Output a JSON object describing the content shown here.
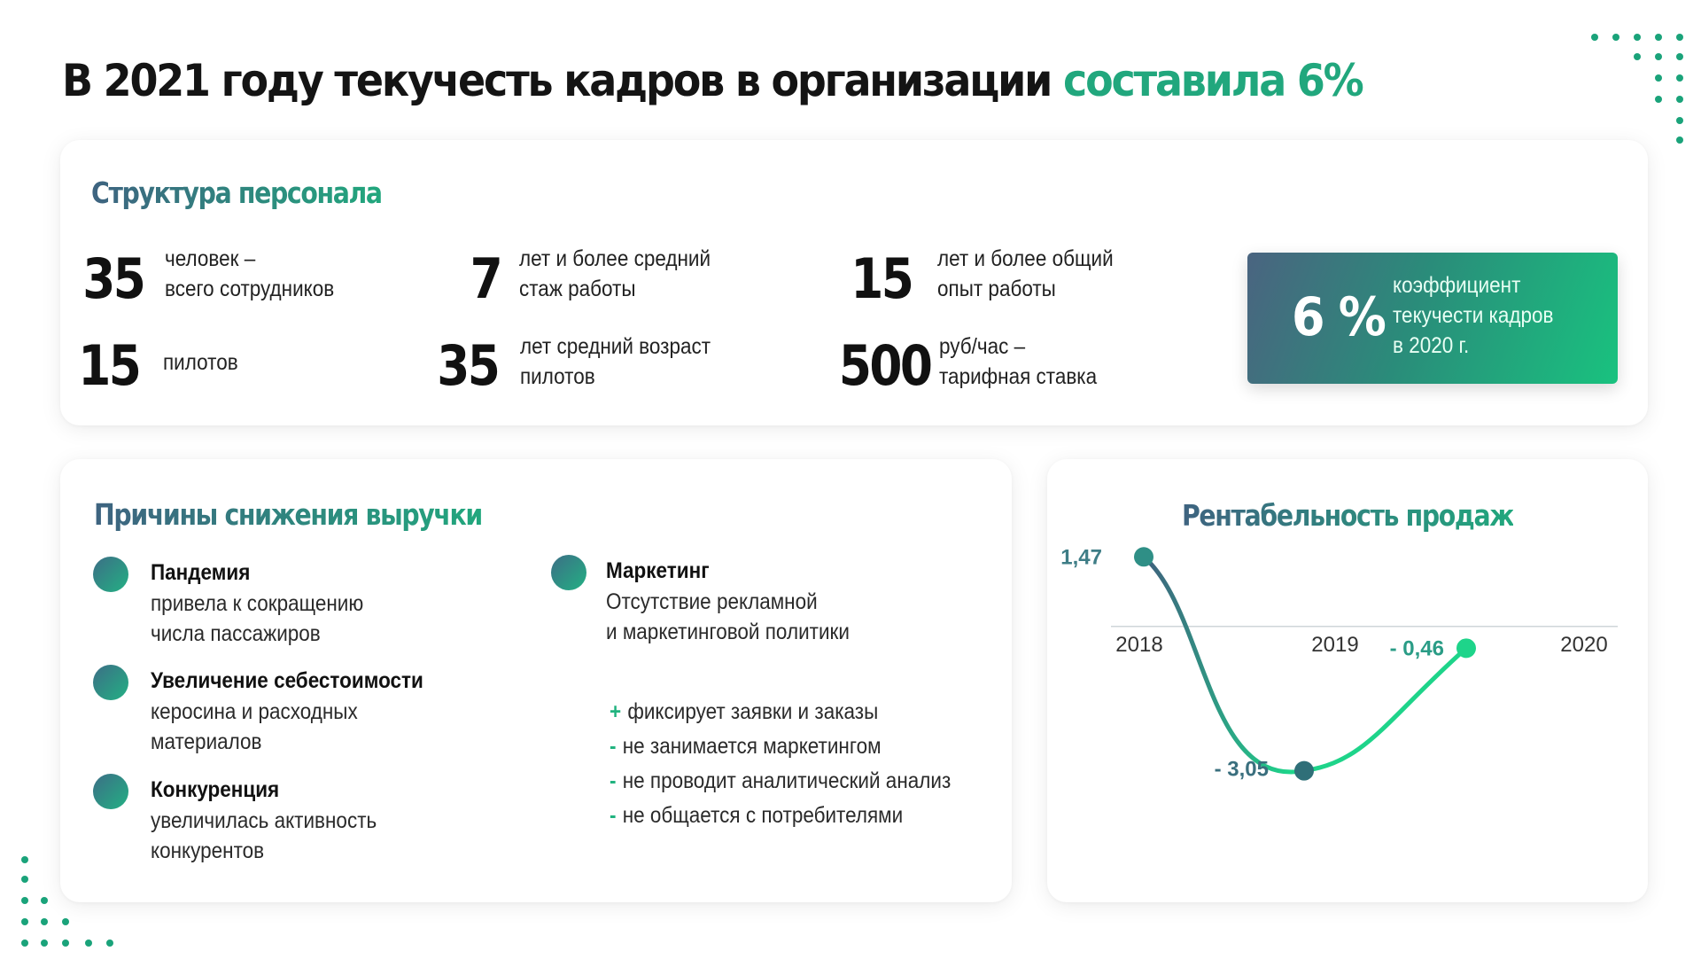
{
  "title": {
    "main": "В 2021 году текучесть кадров в организации",
    "accent": "составила 6%"
  },
  "colors": {
    "accent": "#21a77d",
    "heading_start": "#3e6380",
    "heading_end": "#21a77d",
    "decor_dots": "#1aa37a"
  },
  "structure": {
    "heading": "Структура персонала",
    "stats": [
      {
        "value": "35",
        "label": "человек –\nвсего сотрудников"
      },
      {
        "value": "7",
        "label": "лет и более средний\nстаж работы"
      },
      {
        "value": "15",
        "label": "лет и более общий\nопыт работы"
      },
      {
        "value": "15",
        "label": "пилотов"
      },
      {
        "value": "35",
        "label": "лет средний возраст\nпилотов"
      },
      {
        "value": "500",
        "label": "руб/час –\nтарифная ставка"
      }
    ],
    "coefficient": {
      "value": "6 %",
      "label": "коэффициент\nтекучести кадров\nв 2020 г."
    }
  },
  "reasons": {
    "heading": "Причины снижения выручки",
    "items": [
      {
        "title": "Пандемия",
        "text": "привела к сокращению\nчисла пассажиров"
      },
      {
        "title": "Увеличение себестоимости",
        "text": "керосина и расходных\nматериалов"
      },
      {
        "title": "Конкуренция",
        "text": "увеличилась активность\nконкурентов"
      },
      {
        "title": "Маркетинг",
        "text": "Отсутствие рекламной\nи маркетинговой политики"
      }
    ],
    "bullets": [
      {
        "mark": "+",
        "text": "фиксирует заявки и заказы"
      },
      {
        "mark": "-",
        "text": "не занимается маркетингом"
      },
      {
        "mark": "-",
        "text": "не проводит аналитический анализ"
      },
      {
        "mark": "-",
        "text": "не общается с потребителями"
      }
    ]
  },
  "chart_data": {
    "type": "line",
    "title": "Рентабельность продаж",
    "categories": [
      "2018",
      "2019",
      "2020"
    ],
    "values": [
      1.47,
      -3.05,
      -0.46
    ],
    "data_labels": [
      "1,47",
      "- 3,05",
      "- 0,46"
    ],
    "ylim": [
      -3.3,
      1.7
    ],
    "grid": false,
    "legend": "none",
    "colors": {
      "start": "#3f5f7d",
      "end": "#1ed48a"
    }
  }
}
